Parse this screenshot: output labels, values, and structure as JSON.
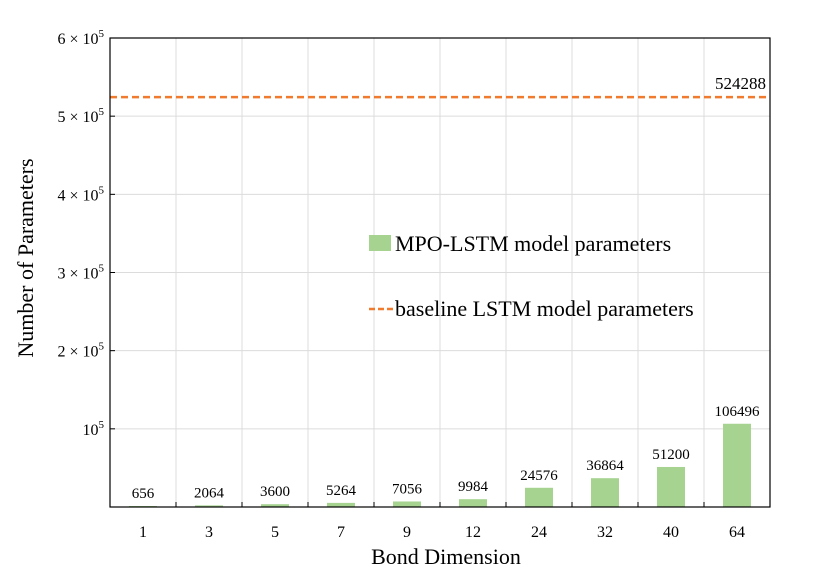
{
  "chart_data": {
    "type": "bar",
    "xlabel": "Bond Dimension",
    "ylabel": "Number of Parameters",
    "ylim": [
      0,
      600000
    ],
    "grid": true,
    "categories": [
      "1",
      "3",
      "5",
      "7",
      "9",
      "12",
      "24",
      "32",
      "40",
      "64"
    ],
    "series": [
      {
        "name": "MPO-LSTM model parameters",
        "values": [
          656,
          2064,
          3600,
          5264,
          7056,
          9984,
          24576,
          36864,
          51200,
          106496
        ],
        "labels": [
          "656",
          "2064",
          "3600",
          "5264",
          "7056",
          "9984",
          "24576",
          "36864",
          "51200",
          "106496"
        ],
        "color": "#a6d38f"
      }
    ],
    "baseline": {
      "name": "baseline LSTM model parameters",
      "value": 524288,
      "label": "524288",
      "color": "#f07b2e"
    },
    "yticks": [
      {
        "value": 100000,
        "mantissa": "",
        "exponent": "5"
      },
      {
        "value": 200000,
        "mantissa": "2",
        "exponent": "5"
      },
      {
        "value": 300000,
        "mantissa": "3",
        "exponent": "5"
      },
      {
        "value": 400000,
        "mantissa": "4",
        "exponent": "5"
      },
      {
        "value": 500000,
        "mantissa": "5",
        "exponent": "5"
      },
      {
        "value": 600000,
        "mantissa": "6",
        "exponent": "5"
      }
    ],
    "legend_position": "center-right"
  }
}
